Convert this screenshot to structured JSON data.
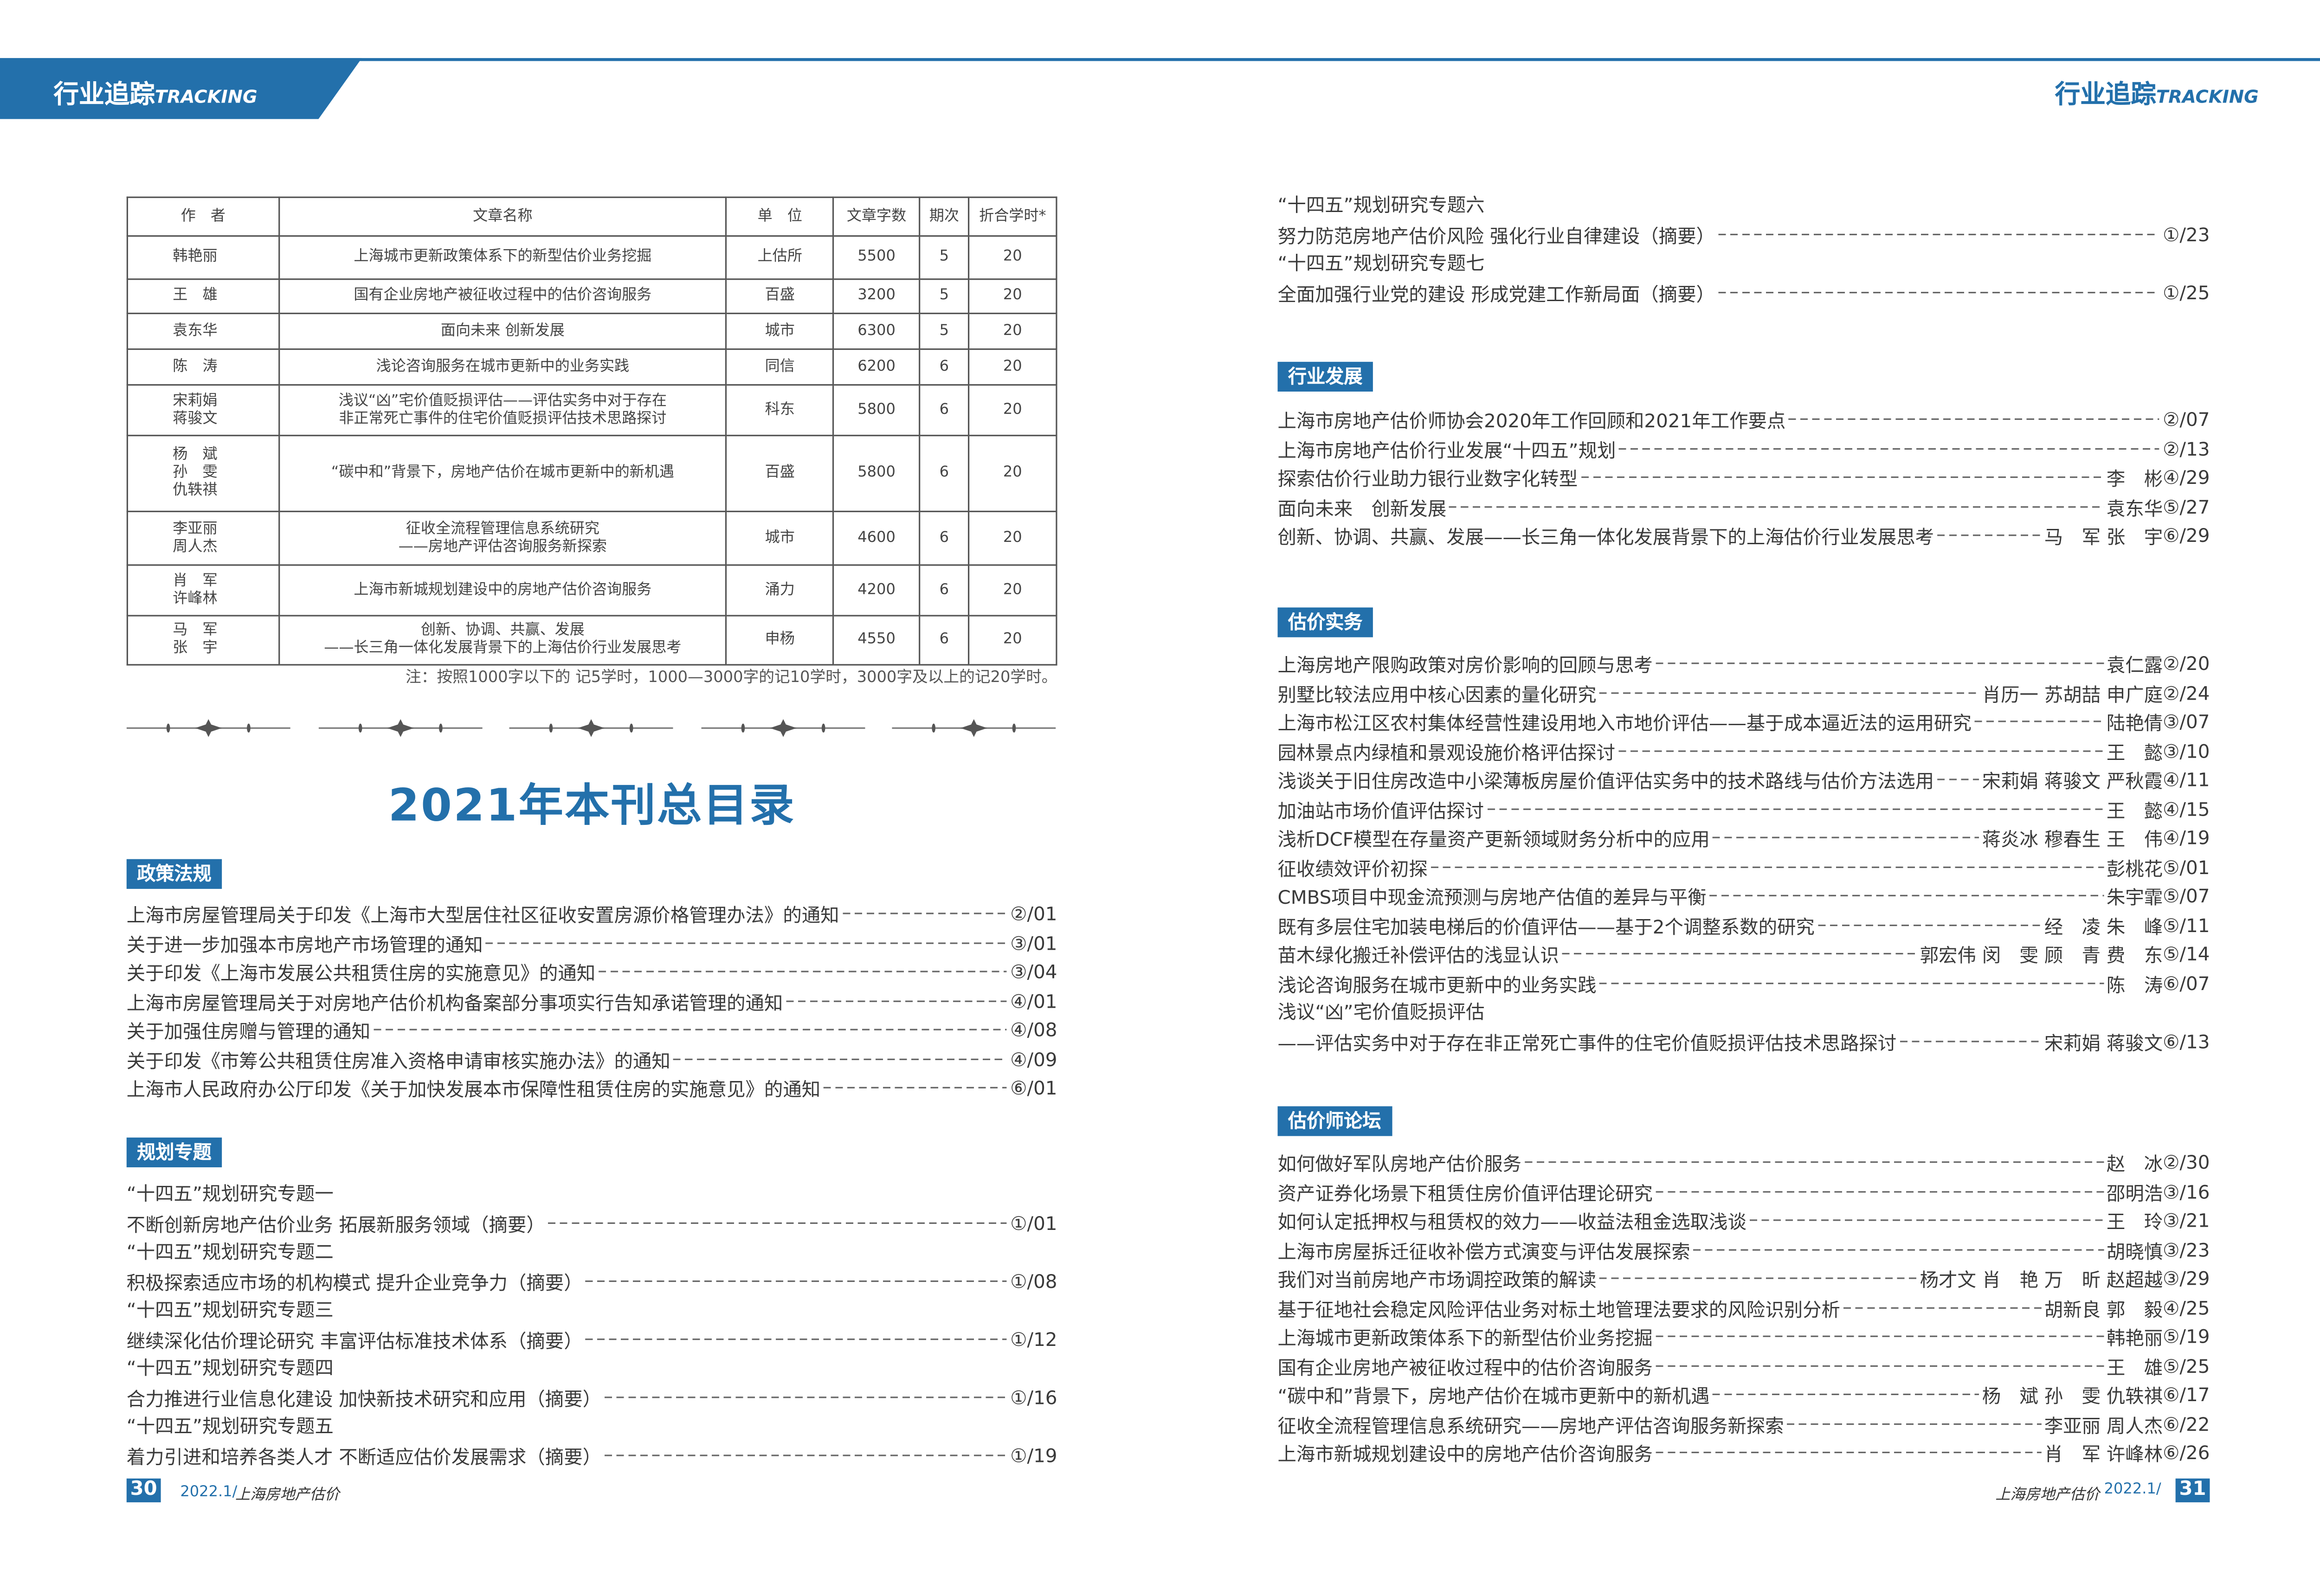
{
  "header": {
    "section_cn": "行业追踪",
    "section_en": "TRACKING"
  },
  "table": {
    "headers": [
      "作　者",
      "文章名称",
      "单　位",
      "文章字数",
      "期次",
      "折合学时*"
    ],
    "rows": [
      {
        "author": [
          "韩艳丽"
        ],
        "title": [
          "上海城市更新政策体系下的新型估价业务挖掘"
        ],
        "unit": "上估所",
        "chars": "5500",
        "issue": "5",
        "hours": "20"
      },
      {
        "author": [
          "王　雄"
        ],
        "title": [
          "国有企业房地产被征收过程中的估价咨询服务"
        ],
        "unit": "百盛",
        "chars": "3200",
        "issue": "5",
        "hours": "20"
      },
      {
        "author": [
          "袁东华"
        ],
        "title": [
          "面向未来 创新发展"
        ],
        "unit": "城市",
        "chars": "6300",
        "issue": "5",
        "hours": "20"
      },
      {
        "author": [
          "陈　涛"
        ],
        "title": [
          "浅论咨询服务在城市更新中的业务实践"
        ],
        "unit": "同信",
        "chars": "6200",
        "issue": "6",
        "hours": "20"
      },
      {
        "author": [
          "宋莉娟",
          "蒋骏文"
        ],
        "title": [
          "浅议“凶”宅价值贬损评估——评估实务中对于存在",
          "非正常死亡事件的住宅价值贬损评估技术思路探讨"
        ],
        "unit": "科东",
        "chars": "5800",
        "issue": "6",
        "hours": "20"
      },
      {
        "author": [
          "杨　斌",
          "孙　雯",
          "仇轶祺"
        ],
        "title": [
          "“碳中和”背景下，房地产估价在城市更新中的新机遇"
        ],
        "unit": "百盛",
        "chars": "5800",
        "issue": "6",
        "hours": "20"
      },
      {
        "author": [
          "李亚丽",
          "周人杰"
        ],
        "title": [
          "征收全流程管理信息系统研究",
          "——房地产评估咨询服务新探索"
        ],
        "unit": "城市",
        "chars": "4600",
        "issue": "6",
        "hours": "20"
      },
      {
        "author": [
          "肖　军",
          "许峰林"
        ],
        "title": [
          "上海市新城规划建设中的房地产估价咨询服务"
        ],
        "unit": "涌力",
        "chars": "4200",
        "issue": "6",
        "hours": "20"
      },
      {
        "author": [
          "马　军",
          "张　宇"
        ],
        "title": [
          "创新、协调、共赢、发展",
          "——长三角一体化发展背景下的上海估价行业发展思考"
        ],
        "unit": "申杨",
        "chars": "4550",
        "issue": "6",
        "hours": "20"
      }
    ],
    "note": "注：按照1000字以下的 记5学时，1000—3000字的记10学时，3000字及以上的记20学时。"
  },
  "main_title": "2021年本刊总目录",
  "sections": {
    "policy": {
      "label": "政策法规",
      "entries": [
        {
          "title": "上海市房屋管理局关于印发《上海市大型居住社区征收安置房源价格管理办法》的通知",
          "author": "",
          "ref": "②/01"
        },
        {
          "title": "关于进一步加强本市房地产市场管理的通知",
          "author": "",
          "ref": "③/01"
        },
        {
          "title": "关于印发《上海市发展公共租赁住房的实施意见》的通知",
          "author": "",
          "ref": "③/04"
        },
        {
          "title": "上海市房屋管理局关于对房地产估价机构备案部分事项实行告知承诺管理的通知",
          "author": "",
          "ref": "④/01"
        },
        {
          "title": "关于加强住房赠与管理的通知",
          "author": "",
          "ref": "④/08"
        },
        {
          "title": "关于印发《市筹公共租赁住房准入资格申请审核实施办法》的通知",
          "author": "",
          "ref": "④/09"
        },
        {
          "title": "上海市人民政府办公厅印发《关于加快发展本市保障性租赁住房的实施意见》的通知",
          "author": "",
          "ref": "⑥/01"
        }
      ]
    },
    "planning": {
      "label": "规划专题",
      "entries": [
        {
          "sub": "“十四五”规划研究专题一",
          "title": "不断创新房地产估价业务  拓展新服务领域（摘要）",
          "author": "",
          "ref": "①/01"
        },
        {
          "sub": "“十四五”规划研究专题二",
          "title": "积极探索适应市场的机构模式  提升企业竞争力（摘要）",
          "author": "",
          "ref": "①/08"
        },
        {
          "sub": "“十四五”规划研究专题三",
          "title": "继续深化估价理论研究  丰富评估标准技术体系（摘要）",
          "author": "",
          "ref": "①/12"
        },
        {
          "sub": "“十四五”规划研究专题四",
          "title": "合力推进行业信息化建设  加快新技术研究和应用（摘要）",
          "author": "",
          "ref": "①/16"
        },
        {
          "sub": "“十四五”规划研究专题五",
          "title": "着力引进和培养各类人才  不断适应估价发展需求（摘要）",
          "author": "",
          "ref": "①/19"
        },
        {
          "sub": "“十四五”规划研究专题六",
          "title": "努力防范房地产估价风险  强化行业自律建设（摘要）",
          "author": "",
          "ref": "①/23"
        },
        {
          "sub": "“十四五”规划研究专题七",
          "title": "全面加强行业党的建设  形成党建工作新局面（摘要）",
          "author": "",
          "ref": "①/25"
        }
      ]
    },
    "industry": {
      "label": "行业发展",
      "entries": [
        {
          "title": "上海市房地产估价师协会2020年工作回顾和2021年工作要点",
          "author": "",
          "ref": "②/07"
        },
        {
          "title": "上海市房地产估价行业发展“十四五”规划",
          "author": "",
          "ref": "②/13"
        },
        {
          "title": "探索估价行业助力银行业数字化转型",
          "author": "李　彬",
          "ref": "④/29"
        },
        {
          "title": "面向未来　创新发展",
          "author": "袁东华",
          "ref": "⑤/27"
        },
        {
          "title": "创新、协调、共赢、发展——长三角一体化发展背景下的上海估价行业发展思考",
          "author": "马　军 张　宇",
          "ref": "⑥/29"
        }
      ]
    },
    "practice": {
      "label": "估价实务",
      "entries": [
        {
          "title": "上海房地产限购政策对房价影响的回顾与思考",
          "author": "袁仁露",
          "ref": "②/20"
        },
        {
          "title": "别墅比较法应用中核心因素的量化研究",
          "author": "肖历一  苏胡喆  申广庭",
          "ref": "②/24"
        },
        {
          "title": "上海市松江区农村集体经营性建设用地入市地价评估——基于成本逼近法的运用研究",
          "author": "陆艳倩",
          "ref": "③/07"
        },
        {
          "title": "园林景点内绿植和景观设施价格评估探讨",
          "author": "王　懿",
          "ref": "③/10"
        },
        {
          "title": "浅谈关于旧住房改造中小梁薄板房屋价值评估实务中的技术路线与估价方法选用",
          "author": "宋莉娟 蒋骏文 严秋霞",
          "ref": "④/11"
        },
        {
          "title": "加油站市场价值评估探讨",
          "author": "王　懿",
          "ref": "④/15"
        },
        {
          "title": "浅析DCF模型在存量资产更新领域财务分析中的应用",
          "author": "蒋炎冰 穆春生 王　伟",
          "ref": "④/19"
        },
        {
          "title": "征收绩效评价初探",
          "author": "彭桃花",
          "ref": "⑤/01"
        },
        {
          "title": "CMBS项目中现金流预测与房地产估值的差异与平衡",
          "author": "朱宇霏",
          "ref": "⑤/07"
        },
        {
          "title": "既有多层住宅加装电梯后的价值评估——基于2个调整系数的研究",
          "author": "经　凌 朱　峰",
          "ref": "⑤/11"
        },
        {
          "title": "苗木绿化搬迁补偿评估的浅显认识",
          "author": "郭宏伟 闵　雯 顾　青 费　东",
          "ref": "⑤/14"
        },
        {
          "title": "浅论咨询服务在城市更新中的业务实践",
          "author": "陈　涛",
          "ref": "⑥/07"
        },
        {
          "sub": "浅议“凶”宅价值贬损评估",
          "title": "——评估实务中对于存在非正常死亡事件的住宅价值贬损评估技术思路探讨",
          "author": "宋莉娟 蒋骏文",
          "ref": "⑥/13"
        }
      ]
    },
    "forum": {
      "label": "估价师论坛",
      "entries": [
        {
          "title": "如何做好军队房地产估价服务",
          "author": "赵　冰",
          "ref": "②/30"
        },
        {
          "title": "资产证券化场景下租赁住房价值评估理论研究",
          "author": "邵明浩",
          "ref": "③/16"
        },
        {
          "title": "如何认定抵押权与租赁权的效力——收益法租金选取浅谈",
          "author": "王　玲",
          "ref": "③/21"
        },
        {
          "title": "上海市房屋拆迁征收补偿方式演变与评估发展探索",
          "author": "胡晓慎",
          "ref": "③/23"
        },
        {
          "title": "我们对当前房地产市场调控政策的解读",
          "author": "杨才文 肖　艳 万　昕 赵超越",
          "ref": "③/29"
        },
        {
          "title": "基于征地社会稳定风险评估业务对标土地管理法要求的风险识别分析",
          "author": "胡新良 郭　毅",
          "ref": "④/25"
        },
        {
          "title": "上海城市更新政策体系下的新型估价业务挖掘",
          "author": "韩艳丽",
          "ref": "⑤/19"
        },
        {
          "title": "国有企业房地产被征收过程中的估价咨询服务",
          "author": "王　雄",
          "ref": "⑤/25"
        },
        {
          "title": "“碳中和”背景下，房地产估价在城市更新中的新机遇",
          "author": "杨　斌 孙　雯 仇轶祺",
          "ref": "⑥/17"
        },
        {
          "title": "征收全流程管理信息系统研究——房地产评估咨询服务新探索",
          "author": "李亚丽 周人杰",
          "ref": "⑥/22"
        },
        {
          "title": "上海市新城规划建设中的房地产估价咨询服务",
          "author": "肖　军 许峰林",
          "ref": "⑥/26"
        }
      ]
    }
  },
  "footer": {
    "left_page": "30",
    "right_page": "31",
    "issue": "2022.1/",
    "logo_text": "上海房地产估价"
  },
  "colors": {
    "brand": "#2370ab",
    "text": "#3a3a3a"
  }
}
